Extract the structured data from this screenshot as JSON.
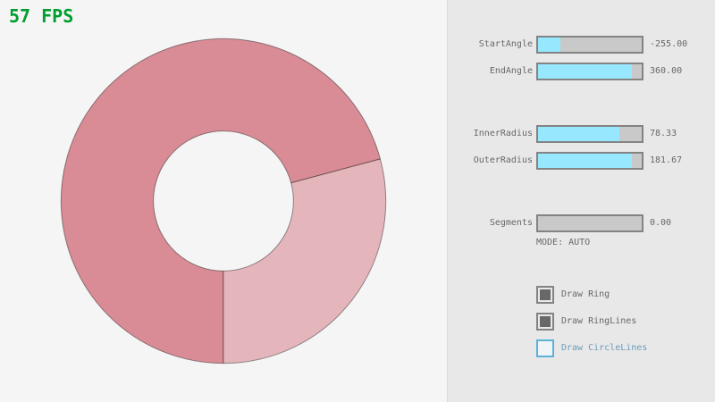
{
  "fps_label": "57 FPS",
  "ring": {
    "start_angle": "-255.00",
    "end_angle": "360.00",
    "inner_radius": "78.33",
    "outer_radius": "181.67",
    "segments": "0.00",
    "color_overlap": "#D98C95",
    "color_single": "#E5B5BC",
    "line_color": "rgba(0,0,0,0.4)"
  },
  "panel": {
    "sliders": [
      {
        "label": "StartAngle",
        "value": "-255.00",
        "fill_pct": 21.6
      },
      {
        "label": "EndAngle",
        "value": "360.00",
        "fill_pct": 90.5
      },
      {
        "label": "InnerRadius",
        "value": "78.33",
        "fill_pct": 78.3
      },
      {
        "label": "OuterRadius",
        "value": "181.67",
        "fill_pct": 90.8
      },
      {
        "label": "Segments",
        "value": "0.00",
        "fill_pct": 0
      }
    ],
    "mode_label": "MODE: AUTO",
    "checkboxes": [
      {
        "label": "Draw Ring",
        "checked": true,
        "focused": false
      },
      {
        "label": "Draw RingLines",
        "checked": true,
        "focused": false
      },
      {
        "label": "Draw CircleLines",
        "checked": false,
        "focused": true
      }
    ]
  },
  "colors": {
    "fps_green": "#009E2F",
    "background": "#F5F5F5",
    "panel_background": "#E8E8E8",
    "divider": "#DADADA",
    "control_border": "#838383",
    "control_track": "#C9C9C9",
    "control_fill": "#97E8FF",
    "text": "#686868",
    "focus_border": "#5BB2D9",
    "focus_text": "#6C9BBC"
  }
}
